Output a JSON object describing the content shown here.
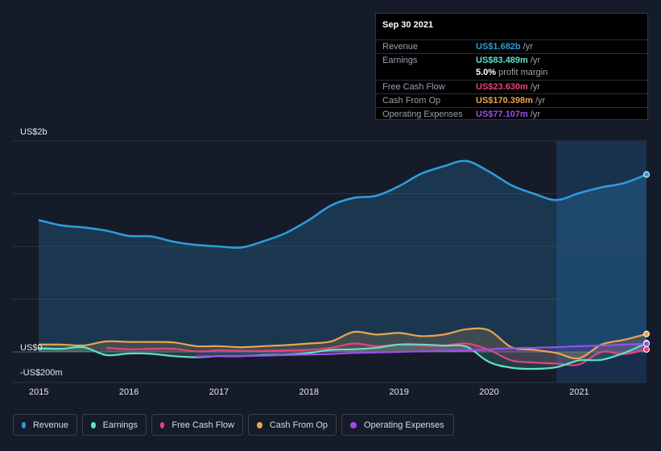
{
  "tooltip": {
    "date": "Sep 30 2021",
    "rows": [
      {
        "label": "Revenue",
        "value": "US$1.682b",
        "unit": "/yr",
        "color": "#2d9cdb"
      },
      {
        "label": "Earnings",
        "value": "US$83.489m",
        "unit": "/yr",
        "color": "#5fe0c8"
      },
      {
        "label": "",
        "value": "5.0%",
        "unit": "profit margin",
        "color": "#ffffff"
      },
      {
        "label": "Free Cash Flow",
        "value": "US$23.630m",
        "unit": "/yr",
        "color": "#e0457b"
      },
      {
        "label": "Cash From Op",
        "value": "US$170.398m",
        "unit": "/yr",
        "color": "#e9a552"
      },
      {
        "label": "Operating Expenses",
        "value": "US$77.107m",
        "unit": "/yr",
        "color": "#9b4fe8"
      }
    ]
  },
  "legend": [
    {
      "label": "Revenue",
      "color": "#2d9cdb"
    },
    {
      "label": "Earnings",
      "color": "#5fe0c8"
    },
    {
      "label": "Free Cash Flow",
      "color": "#e0457b"
    },
    {
      "label": "Cash From Op",
      "color": "#e9a552"
    },
    {
      "label": "Operating Expenses",
      "color": "#9b4fe8"
    }
  ],
  "chart_data": {
    "type": "area",
    "title": "",
    "ylabel_top": "US$2b",
    "ylabel_zero": "US$0",
    "ylabel_bottom": "-US$200m",
    "ylim": [
      -200,
      2000
    ],
    "xlim": [
      2015.0,
      2021.75
    ],
    "x_ticks": [
      "2015",
      "2016",
      "2017",
      "2018",
      "2019",
      "2020",
      "2021"
    ],
    "forecast_start": 2020.75,
    "series": [
      {
        "name": "Revenue",
        "color": "#2d9cdb",
        "x": [
          2015.0,
          2015.25,
          2015.5,
          2015.75,
          2016.0,
          2016.25,
          2016.5,
          2016.75,
          2017.0,
          2017.25,
          2017.5,
          2017.75,
          2018.0,
          2018.25,
          2018.5,
          2018.75,
          2019.0,
          2019.25,
          2019.5,
          2019.75,
          2020.0,
          2020.25,
          2020.5,
          2020.75,
          2021.0,
          2021.25,
          2021.5,
          2021.75
        ],
        "values": [
          1250,
          1200,
          1180,
          1150,
          1100,
          1095,
          1045,
          1015,
          1000,
          990,
          1050,
          1130,
          1250,
          1390,
          1460,
          1480,
          1570,
          1690,
          1760,
          1810,
          1710,
          1580,
          1500,
          1440,
          1505,
          1560,
          1600,
          1682
        ]
      },
      {
        "name": "Earnings",
        "color": "#5fe0c8",
        "x": [
          2015.0,
          2015.25,
          2015.5,
          2015.75,
          2016.0,
          2016.25,
          2016.5,
          2016.75,
          2017.0,
          2017.25,
          2017.5,
          2017.75,
          2018.0,
          2018.25,
          2018.5,
          2018.75,
          2019.0,
          2019.25,
          2019.5,
          2019.75,
          2020.0,
          2020.25,
          2020.5,
          2020.75,
          2021.0,
          2021.25,
          2021.5,
          2021.75
        ],
        "values": [
          35,
          30,
          45,
          -30,
          -15,
          -18,
          -40,
          -50,
          -40,
          -40,
          -30,
          -25,
          -10,
          20,
          25,
          40,
          70,
          70,
          60,
          50,
          -95,
          -150,
          -160,
          -145,
          -80,
          -75,
          -10,
          83.5
        ]
      },
      {
        "name": "Free Cash Flow",
        "color": "#e0457b",
        "x": [
          2015.75,
          2016.0,
          2016.25,
          2016.5,
          2016.75,
          2017.0,
          2017.25,
          2017.5,
          2017.75,
          2018.0,
          2018.25,
          2018.5,
          2018.75,
          2019.0,
          2019.25,
          2019.5,
          2019.75,
          2020.0,
          2020.25,
          2020.5,
          2020.75,
          2021.0,
          2021.25,
          2021.5,
          2021.75
        ],
        "values": [
          40,
          25,
          30,
          30,
          5,
          15,
          10,
          10,
          15,
          20,
          40,
          80,
          55,
          70,
          60,
          60,
          80,
          20,
          -80,
          -100,
          -110,
          -120,
          0,
          -20,
          23.6
        ]
      },
      {
        "name": "Cash From Op",
        "color": "#e9a552",
        "x": [
          2015.0,
          2015.25,
          2015.5,
          2015.75,
          2016.0,
          2016.25,
          2016.5,
          2016.75,
          2017.0,
          2017.25,
          2017.5,
          2017.75,
          2018.0,
          2018.25,
          2018.5,
          2018.75,
          2019.0,
          2019.25,
          2019.5,
          2019.75,
          2020.0,
          2020.25,
          2020.5,
          2020.75,
          2021.0,
          2021.25,
          2021.5,
          2021.75
        ],
        "values": [
          70,
          70,
          62,
          100,
          95,
          95,
          90,
          55,
          55,
          45,
          55,
          65,
          80,
          100,
          190,
          165,
          180,
          150,
          165,
          215,
          205,
          45,
          20,
          -10,
          -60,
          70,
          115,
          170.4
        ]
      },
      {
        "name": "Operating Expenses",
        "color": "#9b4fe8",
        "x": [
          2016.75,
          2017.0,
          2017.25,
          2017.5,
          2017.75,
          2018.0,
          2018.25,
          2018.5,
          2018.75,
          2019.0,
          2019.25,
          2019.5,
          2019.75,
          2020.0,
          2020.25,
          2020.5,
          2020.75,
          2021.0,
          2021.25,
          2021.5,
          2021.75
        ],
        "values": [
          -45,
          -40,
          -38,
          -35,
          -30,
          -25,
          -20,
          -10,
          -5,
          0,
          5,
          10,
          15,
          25,
          35,
          40,
          45,
          55,
          60,
          70,
          77.1
        ]
      }
    ]
  }
}
